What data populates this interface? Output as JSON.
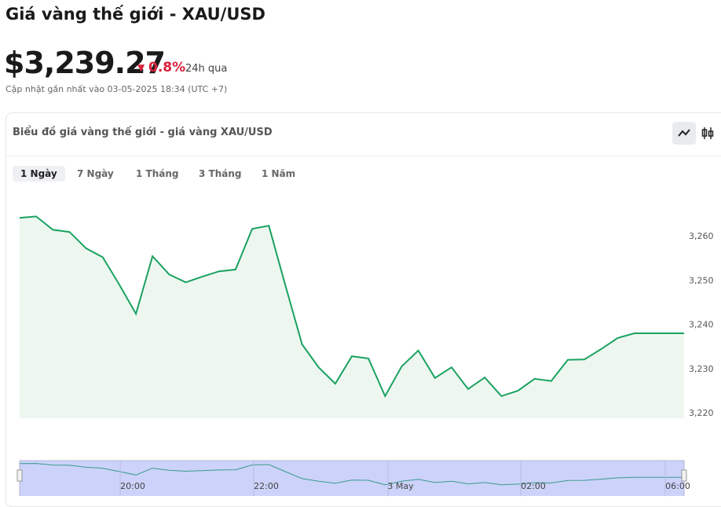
{
  "header": {
    "title": "Giá vàng thế giới - XAU/USD",
    "price": "$3,239.27",
    "change": "0.8%",
    "change_period": "24h qua",
    "updated": "Cập nhật gần nhất vào 03-05-2025 18:34 (UTC +7)"
  },
  "card": {
    "title": "Biểu đồ giá vàng thế giới - giá vàng XAU/USD",
    "tabs": [
      "1 Ngày",
      "7 Ngày",
      "1 Tháng",
      "3 Tháng",
      "1 Năm"
    ]
  },
  "chart_data": {
    "type": "line",
    "color": "#1aa260",
    "categories": [
      null,
      null,
      null,
      null,
      null,
      null,
      null,
      null,
      null,
      null,
      null,
      null,
      null,
      null,
      null,
      null,
      null,
      null,
      null,
      null,
      null,
      null,
      null,
      null,
      null,
      null,
      null,
      null,
      null,
      null,
      null,
      null,
      null,
      null,
      null,
      null,
      null,
      null,
      null,
      null,
      null
    ],
    "values": [
      3264.1,
      3264.4,
      3261.4,
      3260.9,
      3257.2,
      3255.2,
      3249.0,
      3242.4,
      3255.4,
      3251.3,
      3249.5,
      3250.8,
      3252.0,
      3252.4,
      3261.6,
      3262.3,
      3248.8,
      3235.5,
      3230.3,
      3226.6,
      3232.8,
      3232.3,
      3223.8,
      3230.5,
      3234.1,
      3227.9,
      3230.3,
      3225.4,
      3228.0,
      3223.8,
      3225.0,
      3227.7,
      3227.2,
      3232.0,
      3232.1,
      3234.4,
      3236.9,
      3238.0,
      3238.0,
      3238.0,
      3238.0
    ],
    "ylim": [
      3218.8,
      3269.8
    ],
    "yticks": [
      {
        "value": 3220,
        "label": "3,220"
      },
      {
        "value": 3230,
        "label": "3,230"
      },
      {
        "value": 3240,
        "label": "3,240"
      },
      {
        "value": 3250,
        "label": "3,250"
      },
      {
        "value": 3260,
        "label": "3,260"
      }
    ],
    "navigator_labels": [
      "20:00",
      "22:00",
      "3 May",
      "02:00",
      "06:00"
    ]
  }
}
